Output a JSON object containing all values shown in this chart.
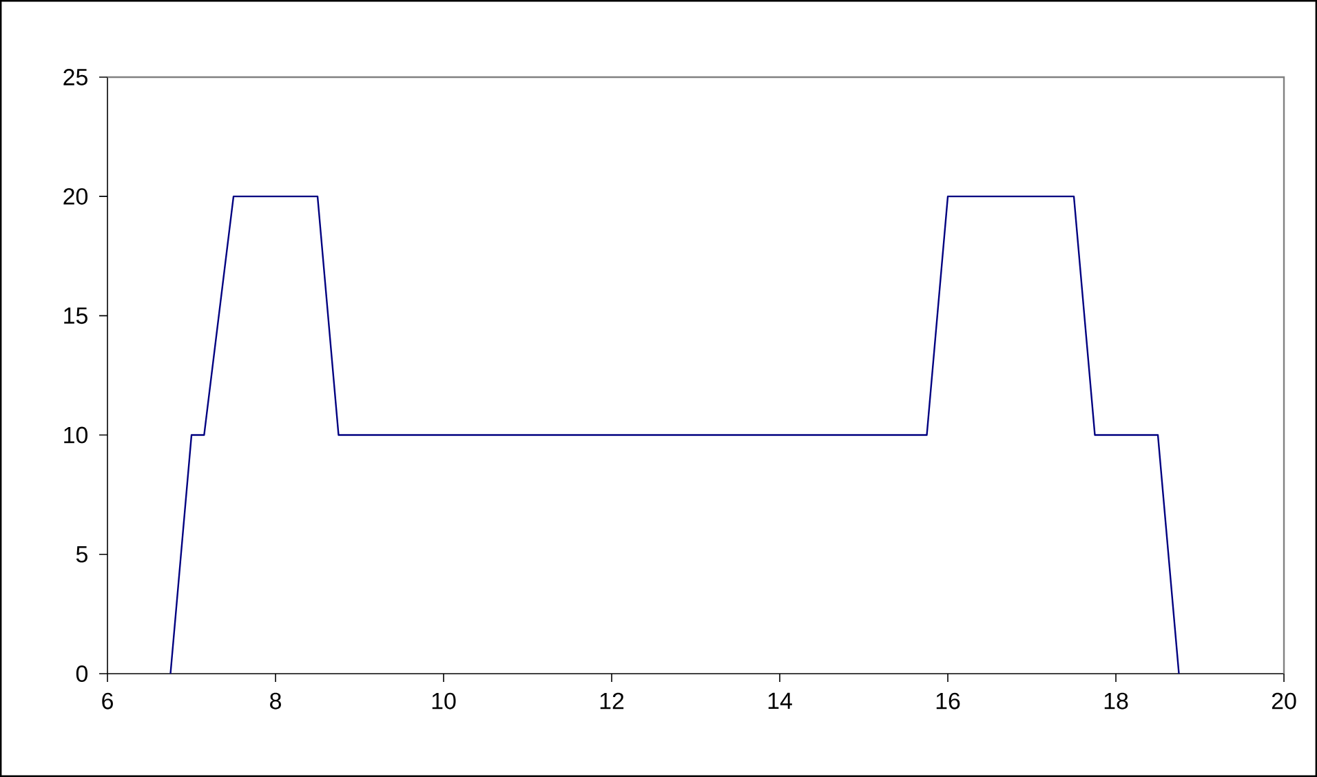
{
  "chart_data": {
    "type": "line",
    "x": [
      6.75,
      7,
      7.15,
      7.5,
      8.5,
      8.75,
      15.75,
      16,
      17.5,
      17.75,
      18.5,
      18.75
    ],
    "values": [
      0,
      10,
      10,
      20,
      20,
      10,
      10,
      20,
      20,
      10,
      10,
      0
    ],
    "color": "#000080",
    "xlim": [
      6,
      20
    ],
    "ylim": [
      0,
      25
    ],
    "xticks": [
      6,
      8,
      10,
      12,
      14,
      16,
      18,
      20
    ],
    "yticks": [
      0,
      5,
      10,
      15,
      20,
      25
    ],
    "marker": "none",
    "line_style": "solid"
  }
}
